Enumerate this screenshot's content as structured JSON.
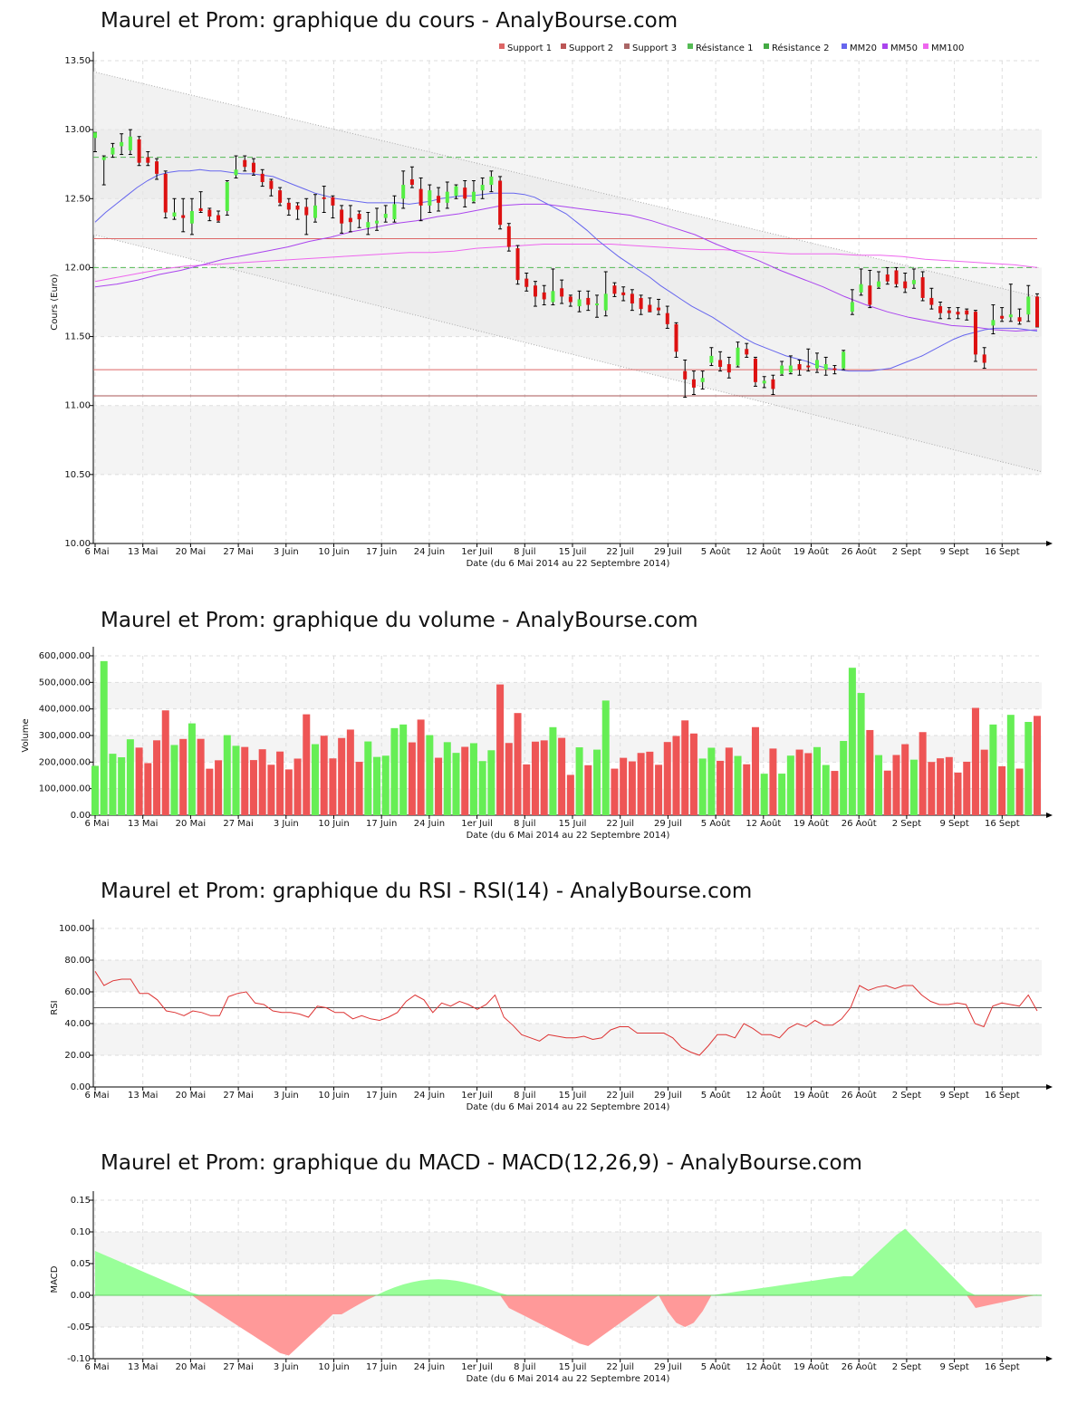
{
  "colors": {
    "up": "#55ee44",
    "down": "#dd1111",
    "wick": "#000000",
    "grid": "#dddddd",
    "band": "#f4f4f4",
    "mm20": "#6666ee",
    "mm50": "#aa44ee",
    "mm100": "#ee66ee",
    "support": "#dd6666",
    "resist": "#55bb55",
    "rsi": "#dd3333",
    "macdPos": "#99ff99",
    "macdNeg": "#ff9999"
  },
  "x_ticks": [
    "6 Mai",
    "13 Mai",
    "20 Mai",
    "27 Mai",
    "3 Juin",
    "10 Juin",
    "17 Juin",
    "24 Juin",
    "1er Juil",
    "8 Juil",
    "15 Juil",
    "22 Juil",
    "29 Juil",
    "5 Août",
    "12 Août",
    "19 Août",
    "26 Août",
    "2 Sept",
    "9 Sept",
    "16 Sept"
  ],
  "x_label": "Date (du 6 Mai 2014 au 22 Septembre 2014)",
  "chart_data": [
    {
      "type": "candlestick",
      "title": "Maurel et Prom: graphique du cours - AnalyBourse.com",
      "ylabel": "Cours (Euro)",
      "ylim": [
        10.0,
        13.5
      ],
      "y_ticks": [
        "10.00",
        "10.50",
        "11.00",
        "11.50",
        "12.00",
        "12.50",
        "13.00",
        "13.50"
      ],
      "legend_position": "top-right",
      "legend": [
        "Support 1",
        "Support 2",
        "Support 3",
        "Résistance 1",
        "Résistance 2",
        "MM20",
        "MM50",
        "MM100"
      ],
      "support_levels": [
        11.26,
        11.07,
        12.21
      ],
      "resistance_levels": [
        12.8,
        12.0
      ],
      "ohlc": [
        [
          12.94,
          12.98,
          12.84,
          12.98
        ],
        [
          12.78,
          12.81,
          12.6,
          12.8
        ],
        [
          12.82,
          12.9,
          12.8,
          12.87
        ],
        [
          12.88,
          12.97,
          12.82,
          12.91
        ],
        [
          12.85,
          13.0,
          12.82,
          12.95
        ],
        [
          12.93,
          12.95,
          12.74,
          12.76
        ],
        [
          12.8,
          12.84,
          12.74,
          12.76
        ],
        [
          12.77,
          12.79,
          12.64,
          12.68
        ],
        [
          12.68,
          12.7,
          12.36,
          12.4
        ],
        [
          12.37,
          12.5,
          12.35,
          12.4
        ],
        [
          12.38,
          12.5,
          12.26,
          12.36
        ],
        [
          12.32,
          12.5,
          12.24,
          12.41
        ],
        [
          12.43,
          12.55,
          12.4,
          12.41
        ],
        [
          12.42,
          12.43,
          12.34,
          12.37
        ],
        [
          12.38,
          12.41,
          12.33,
          12.34
        ],
        [
          12.41,
          12.63,
          12.38,
          12.62
        ],
        [
          12.67,
          12.81,
          12.65,
          12.71
        ],
        [
          12.78,
          12.81,
          12.7,
          12.73
        ],
        [
          12.76,
          12.79,
          12.67,
          12.69
        ],
        [
          12.68,
          12.71,
          12.59,
          12.62
        ],
        [
          12.63,
          12.64,
          12.52,
          12.57
        ],
        [
          12.56,
          12.58,
          12.45,
          12.47
        ],
        [
          12.47,
          12.5,
          12.38,
          12.42
        ],
        [
          12.45,
          12.47,
          12.35,
          12.42
        ],
        [
          12.44,
          12.5,
          12.24,
          12.38
        ],
        [
          12.36,
          12.53,
          12.33,
          12.45
        ],
        [
          12.51,
          12.59,
          12.4,
          12.5
        ],
        [
          12.51,
          12.52,
          12.36,
          12.45
        ],
        [
          12.42,
          12.45,
          12.25,
          12.32
        ],
        [
          12.36,
          12.45,
          12.26,
          12.33
        ],
        [
          12.39,
          12.41,
          12.29,
          12.35
        ],
        [
          12.29,
          12.4,
          12.24,
          12.33
        ],
        [
          12.32,
          12.43,
          12.27,
          12.34
        ],
        [
          12.36,
          12.45,
          12.33,
          12.39
        ],
        [
          12.35,
          12.52,
          12.33,
          12.46
        ],
        [
          12.5,
          12.7,
          12.43,
          12.6
        ],
        [
          12.64,
          12.73,
          12.58,
          12.6
        ],
        [
          12.57,
          12.65,
          12.34,
          12.45
        ],
        [
          12.45,
          12.6,
          12.4,
          12.56
        ],
        [
          12.52,
          12.58,
          12.41,
          12.47
        ],
        [
          12.47,
          12.62,
          12.43,
          12.55
        ],
        [
          12.52,
          12.6,
          12.5,
          12.59
        ],
        [
          12.58,
          12.63,
          12.44,
          12.5
        ],
        [
          12.48,
          12.63,
          12.47,
          12.55
        ],
        [
          12.56,
          12.65,
          12.5,
          12.6
        ],
        [
          12.6,
          12.7,
          12.55,
          12.66
        ],
        [
          12.63,
          12.66,
          12.28,
          12.31
        ],
        [
          12.3,
          12.32,
          12.12,
          12.15
        ],
        [
          12.14,
          12.16,
          11.88,
          11.91
        ],
        [
          11.92,
          11.96,
          11.83,
          11.86
        ],
        [
          11.87,
          11.9,
          11.72,
          11.79
        ],
        [
          11.82,
          11.87,
          11.73,
          11.77
        ],
        [
          11.75,
          11.99,
          11.73,
          11.83
        ],
        [
          11.85,
          11.91,
          11.74,
          11.79
        ],
        [
          11.79,
          11.8,
          11.72,
          11.75
        ],
        [
          11.72,
          11.83,
          11.68,
          11.77
        ],
        [
          11.78,
          11.83,
          11.69,
          11.73
        ],
        [
          11.74,
          11.8,
          11.64,
          11.74
        ],
        [
          11.69,
          11.97,
          11.65,
          11.81
        ],
        [
          11.87,
          11.89,
          11.79,
          11.81
        ],
        [
          11.82,
          11.86,
          11.76,
          11.8
        ],
        [
          11.81,
          11.84,
          11.69,
          11.74
        ],
        [
          11.78,
          11.8,
          11.66,
          11.7
        ],
        [
          11.73,
          11.78,
          11.68,
          11.68
        ],
        [
          11.71,
          11.77,
          11.66,
          11.69
        ],
        [
          11.67,
          11.72,
          11.56,
          11.59
        ],
        [
          11.59,
          11.6,
          11.35,
          11.39
        ],
        [
          11.25,
          11.33,
          11.06,
          11.19
        ],
        [
          11.19,
          11.25,
          11.08,
          11.13
        ],
        [
          11.17,
          11.25,
          11.12,
          11.2
        ],
        [
          11.31,
          11.42,
          11.29,
          11.36
        ],
        [
          11.33,
          11.39,
          11.25,
          11.28
        ],
        [
          11.3,
          11.35,
          11.2,
          11.24
        ],
        [
          11.29,
          11.46,
          11.28,
          11.42
        ],
        [
          11.41,
          11.45,
          11.35,
          11.37
        ],
        [
          11.34,
          11.35,
          11.14,
          11.17
        ],
        [
          11.16,
          11.21,
          11.13,
          11.18
        ],
        [
          11.19,
          11.22,
          11.08,
          11.12
        ],
        [
          11.23,
          11.32,
          11.22,
          11.29
        ],
        [
          11.24,
          11.36,
          11.23,
          11.29
        ],
        [
          11.3,
          11.33,
          11.22,
          11.26
        ],
        [
          11.29,
          11.41,
          11.25,
          11.28
        ],
        [
          11.27,
          11.38,
          11.24,
          11.33
        ],
        [
          11.26,
          11.35,
          11.22,
          11.3
        ],
        [
          11.27,
          11.29,
          11.23,
          11.26
        ],
        [
          11.27,
          11.4,
          11.26,
          11.39
        ],
        [
          11.68,
          11.84,
          11.66,
          11.75
        ],
        [
          11.82,
          11.99,
          11.8,
          11.88
        ],
        [
          11.87,
          11.98,
          11.71,
          11.73
        ],
        [
          11.86,
          11.97,
          11.85,
          11.9
        ],
        [
          11.95,
          12.0,
          11.88,
          11.9
        ],
        [
          11.98,
          12.0,
          11.86,
          11.88
        ],
        [
          11.9,
          11.96,
          11.82,
          11.85
        ],
        [
          11.88,
          11.99,
          11.85,
          11.91
        ],
        [
          11.93,
          11.97,
          11.76,
          11.78
        ],
        [
          11.78,
          11.85,
          11.7,
          11.73
        ],
        [
          11.72,
          11.75,
          11.63,
          11.67
        ],
        [
          11.69,
          11.71,
          11.63,
          11.67
        ],
        [
          11.68,
          11.71,
          11.63,
          11.66
        ],
        [
          11.69,
          11.7,
          11.62,
          11.66
        ],
        [
          11.68,
          11.69,
          11.32,
          11.37
        ],
        [
          11.37,
          11.42,
          11.27,
          11.31
        ],
        [
          11.58,
          11.73,
          11.52,
          11.62
        ],
        [
          11.65,
          11.71,
          11.61,
          11.63
        ],
        [
          11.64,
          11.88,
          11.61,
          11.66
        ],
        [
          11.64,
          11.7,
          11.59,
          11.61
        ],
        [
          11.66,
          11.87,
          11.61,
          11.79
        ],
        [
          11.79,
          11.81,
          11.57,
          11.57
        ]
      ],
      "mm20": [
        12.33,
        12.4,
        12.46,
        12.52,
        12.58,
        12.63,
        12.67,
        12.69,
        12.7,
        12.7,
        12.71,
        12.7,
        12.7,
        12.69,
        12.68,
        12.68,
        12.67,
        12.66,
        12.63,
        12.6,
        12.57,
        12.54,
        12.52,
        12.5,
        12.49,
        12.48,
        12.47,
        12.47,
        12.47,
        12.47,
        12.46,
        12.47,
        12.48,
        12.5,
        12.51,
        12.52,
        12.52,
        12.53,
        12.54,
        12.54,
        12.54,
        12.53,
        12.51,
        12.47,
        12.43,
        12.39,
        12.33,
        12.27,
        12.2,
        12.14,
        12.08,
        12.03,
        11.98,
        11.93,
        11.87,
        11.82,
        11.77,
        11.72,
        11.68,
        11.64,
        11.59,
        11.54,
        11.49,
        11.45,
        11.42,
        11.39,
        11.36,
        11.34,
        11.32,
        11.29,
        11.27,
        11.26,
        11.25,
        11.25,
        11.25,
        11.26,
        11.27,
        11.3,
        11.33,
        11.36,
        11.4,
        11.44,
        11.48,
        11.51,
        11.53,
        11.55,
        11.56,
        11.56,
        11.56,
        11.55,
        11.54
      ],
      "mm50": [
        11.86,
        11.88,
        11.91,
        11.95,
        11.98,
        12.02,
        12.06,
        12.09,
        12.12,
        12.15,
        12.19,
        12.22,
        12.26,
        12.29,
        12.32,
        12.34,
        12.37,
        12.39,
        12.42,
        12.45,
        12.46,
        12.46,
        12.44,
        12.42,
        12.4,
        12.38,
        12.34,
        12.29,
        12.24,
        12.17,
        12.11,
        12.05,
        11.98,
        11.92,
        11.86,
        11.79,
        11.73,
        11.68,
        11.64,
        11.61,
        11.58,
        11.57,
        11.55,
        11.54,
        11.55
      ],
      "mm100": [
        11.9,
        11.93,
        11.96,
        11.99,
        12.01,
        12.02,
        12.03,
        12.04,
        12.05,
        12.06,
        12.07,
        12.08,
        12.09,
        12.1,
        12.11,
        12.11,
        12.12,
        12.14,
        12.15,
        12.16,
        12.17,
        12.17,
        12.17,
        12.17,
        12.16,
        12.15,
        12.14,
        12.13,
        12.13,
        12.12,
        12.11,
        12.1,
        12.1,
        12.1,
        12.09,
        12.09,
        12.08,
        12.06,
        12.05,
        12.04,
        12.03,
        12.02,
        12.0
      ]
    },
    {
      "type": "bar",
      "title": "Maurel et Prom: graphique du volume - AnalyBourse.com",
      "ylabel": "Volume",
      "ylim": [
        0,
        600000
      ],
      "y_ticks": [
        "0.00",
        "100,000.00",
        "200,000.00",
        "300,000.00",
        "400,000.00",
        "500,000.00",
        "600,000.00"
      ]
    },
    {
      "type": "line",
      "title": "Maurel et Prom: graphique du RSI - RSI(14) - AnalyBourse.com",
      "ylabel": "RSI",
      "ylim": [
        0,
        100
      ],
      "y_ticks": [
        "0.00",
        "20.00",
        "40.00",
        "60.00",
        "80.00",
        "100.00"
      ],
      "reference_line": 50,
      "values": [
        73,
        64,
        67,
        68,
        68,
        59,
        59,
        55,
        48,
        47,
        45,
        48,
        47,
        45,
        45,
        57,
        59,
        60,
        53,
        52,
        48,
        47,
        47,
        46,
        44,
        51,
        50,
        47,
        47,
        43,
        45,
        43,
        42,
        44,
        47,
        54,
        58,
        55,
        47,
        53,
        51,
        54,
        52,
        49,
        52,
        58,
        44,
        39,
        33,
        31,
        29,
        33,
        32,
        31,
        31,
        32,
        30,
        31,
        36,
        38,
        38,
        34,
        34,
        34,
        34,
        31,
        25,
        22,
        20,
        26,
        33,
        33,
        31,
        40,
        37,
        33,
        33,
        31,
        37,
        40,
        38,
        42,
        39,
        39,
        43,
        50,
        64,
        61,
        63,
        64,
        62,
        64,
        64,
        58,
        54,
        52,
        52,
        53,
        52,
        40,
        38,
        51,
        53,
        52,
        51,
        58,
        48
      ]
    },
    {
      "type": "area",
      "title": "Maurel et Prom: graphique du MACD - MACD(12,26,9) - AnalyBourse.com",
      "ylabel": "MACD",
      "ylim": [
        -0.1,
        0.15
      ],
      "y_ticks": [
        "-0.10",
        "-0.05",
        "0.00",
        "0.05",
        "0.10",
        "0.15"
      ]
    }
  ]
}
